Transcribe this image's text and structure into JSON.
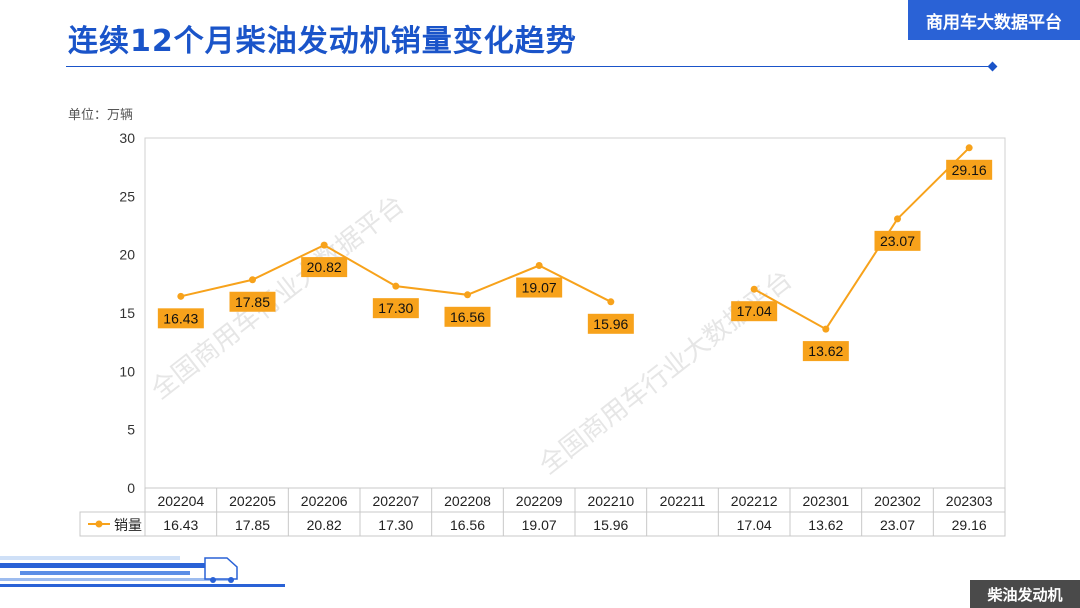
{
  "header": {
    "title": "连续12个月柴油发动机销量变化趋势",
    "brand": "商用车大数据平台"
  },
  "unit_label": "单位：万辆",
  "watermark": "全国商用车行业大数据平台",
  "footer_tag": "柴油发动机",
  "colors": {
    "accent": "#1a54c9",
    "series": "#f7a21b",
    "label_bg": "#f7a21b"
  },
  "chart_data": {
    "type": "line",
    "categories": [
      "202204",
      "202205",
      "202206",
      "202207",
      "202208",
      "202209",
      "202210",
      "202211",
      "202212",
      "202301",
      "202302",
      "202303"
    ],
    "series": [
      {
        "name": "销量",
        "values": [
          16.43,
          17.85,
          20.82,
          17.3,
          16.56,
          19.07,
          15.96,
          null,
          17.04,
          13.62,
          23.07,
          29.16
        ],
        "labels": [
          "16.43",
          "17.85",
          "20.82",
          "17.30",
          "16.56",
          "19.07",
          "15.96",
          "",
          "17.04",
          "13.62",
          "23.07",
          "29.16"
        ]
      }
    ],
    "y_ticks": [
      "0",
      "5",
      "10",
      "15",
      "20",
      "25",
      "30"
    ],
    "ylim": [
      0,
      30
    ],
    "grid": false,
    "data_table": true
  }
}
